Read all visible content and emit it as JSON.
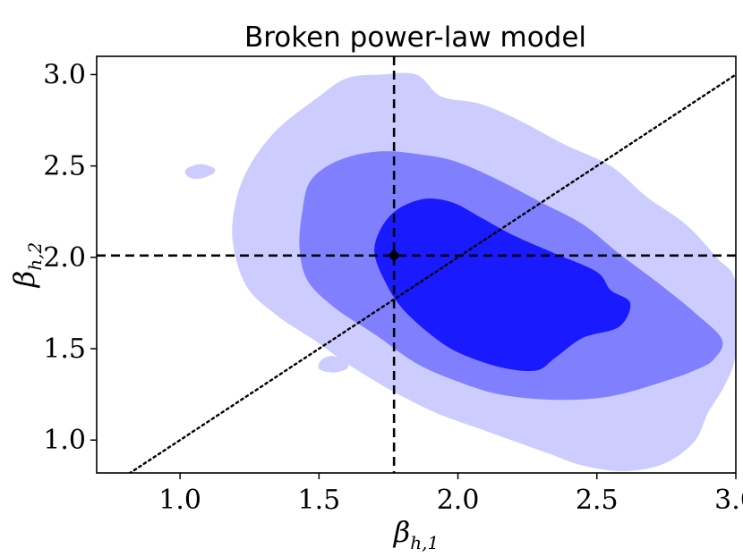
{
  "chart_data": {
    "type": "contour",
    "title": "Broken power-law model",
    "xlabel": {
      "main": "β",
      "sub": "h,1"
    },
    "ylabel": {
      "main": "β",
      "sub": "h,2"
    },
    "xlim": [
      0.7,
      3.0
    ],
    "ylim": [
      0.82,
      3.1
    ],
    "xticks": [
      1.0,
      1.5,
      2.0,
      2.5,
      3.0
    ],
    "xtick_labels": [
      "1.0",
      "1.5",
      "2.0",
      "2.5",
      "3.0"
    ],
    "yticks": [
      1.0,
      1.5,
      2.0,
      2.5,
      3.0
    ],
    "ytick_labels": [
      "1.0",
      "1.5",
      "2.0",
      "2.5",
      "3.0"
    ],
    "grid": false,
    "colors": {
      "outer": "#ccccff",
      "middle": "#8080ff",
      "inner": "#1a1aff",
      "lines": "#000000"
    },
    "contour_levels": [
      {
        "name": "outer",
        "color": "#ccccff",
        "polygons": [
          [
            [
              1.72,
              3.0
            ],
            [
              1.85,
              3.0
            ],
            [
              1.94,
              2.88
            ],
            [
              2.08,
              2.84
            ],
            [
              2.22,
              2.75
            ],
            [
              2.38,
              2.62
            ],
            [
              2.55,
              2.5
            ],
            [
              2.68,
              2.33
            ],
            [
              2.82,
              2.18
            ],
            [
              2.93,
              2.0
            ],
            [
              3.0,
              1.86
            ],
            [
              3.0,
              1.48
            ],
            [
              2.96,
              1.3
            ],
            [
              2.9,
              1.15
            ],
            [
              2.85,
              0.99
            ],
            [
              2.74,
              0.87
            ],
            [
              2.6,
              0.83
            ],
            [
              2.45,
              0.86
            ],
            [
              2.32,
              0.93
            ],
            [
              2.1,
              1.05
            ],
            [
              1.92,
              1.15
            ],
            [
              1.75,
              1.28
            ],
            [
              1.6,
              1.42
            ],
            [
              1.48,
              1.55
            ],
            [
              1.35,
              1.68
            ],
            [
              1.24,
              1.84
            ],
            [
              1.19,
              2.08
            ],
            [
              1.2,
              2.3
            ],
            [
              1.25,
              2.5
            ],
            [
              1.35,
              2.7
            ],
            [
              1.5,
              2.88
            ],
            [
              1.6,
              2.98
            ]
          ],
          [
            [
              1.07,
              2.51
            ],
            [
              1.12,
              2.49
            ],
            [
              1.12,
              2.46
            ],
            [
              1.07,
              2.43
            ],
            [
              1.03,
              2.44
            ],
            [
              1.02,
              2.48
            ]
          ],
          [
            [
              1.55,
              1.46
            ],
            [
              1.6,
              1.43
            ],
            [
              1.6,
              1.39
            ],
            [
              1.55,
              1.37
            ],
            [
              1.5,
              1.39
            ],
            [
              1.51,
              1.44
            ]
          ]
        ]
      },
      {
        "name": "middle",
        "color": "#8080ff",
        "polygons": [
          [
            [
              1.72,
              2.58
            ],
            [
              1.88,
              2.56
            ],
            [
              2.0,
              2.52
            ],
            [
              2.15,
              2.42
            ],
            [
              2.3,
              2.3
            ],
            [
              2.45,
              2.18
            ],
            [
              2.58,
              2.02
            ],
            [
              2.72,
              1.86
            ],
            [
              2.85,
              1.7
            ],
            [
              2.95,
              1.55
            ],
            [
              2.92,
              1.44
            ],
            [
              2.85,
              1.38
            ],
            [
              2.74,
              1.32
            ],
            [
              2.55,
              1.24
            ],
            [
              2.35,
              1.22
            ],
            [
              2.15,
              1.25
            ],
            [
              2.0,
              1.32
            ],
            [
              1.85,
              1.42
            ],
            [
              1.7,
              1.58
            ],
            [
              1.56,
              1.72
            ],
            [
              1.46,
              1.87
            ],
            [
              1.43,
              2.05
            ],
            [
              1.44,
              2.25
            ],
            [
              1.47,
              2.42
            ],
            [
              1.57,
              2.53
            ]
          ]
        ]
      },
      {
        "name": "inner",
        "color": "#1a1aff",
        "polygons": [
          [
            [
              1.88,
              2.32
            ],
            [
              1.98,
              2.3
            ],
            [
              2.08,
              2.22
            ],
            [
              2.2,
              2.12
            ],
            [
              2.35,
              2.02
            ],
            [
              2.5,
              1.92
            ],
            [
              2.55,
              1.82
            ],
            [
              2.62,
              1.75
            ],
            [
              2.58,
              1.62
            ],
            [
              2.45,
              1.56
            ],
            [
              2.35,
              1.45
            ],
            [
              2.28,
              1.38
            ],
            [
              2.15,
              1.4
            ],
            [
              2.0,
              1.48
            ],
            [
              1.9,
              1.58
            ],
            [
              1.8,
              1.72
            ],
            [
              1.74,
              1.86
            ],
            [
              1.7,
              2.02
            ],
            [
              1.72,
              2.15
            ],
            [
              1.78,
              2.26
            ]
          ]
        ]
      }
    ],
    "reference_lines": [
      {
        "kind": "vertical",
        "x": 1.77,
        "style": "dashed"
      },
      {
        "kind": "horizontal",
        "y": 2.01,
        "style": "dashed"
      },
      {
        "kind": "diagonal",
        "points": [
          [
            0.8,
            0.8
          ],
          [
            3.0,
            3.0
          ]
        ],
        "style": "dotted"
      }
    ],
    "points": [
      {
        "x": 1.77,
        "y": 2.01,
        "marker": "diamond"
      }
    ]
  }
}
